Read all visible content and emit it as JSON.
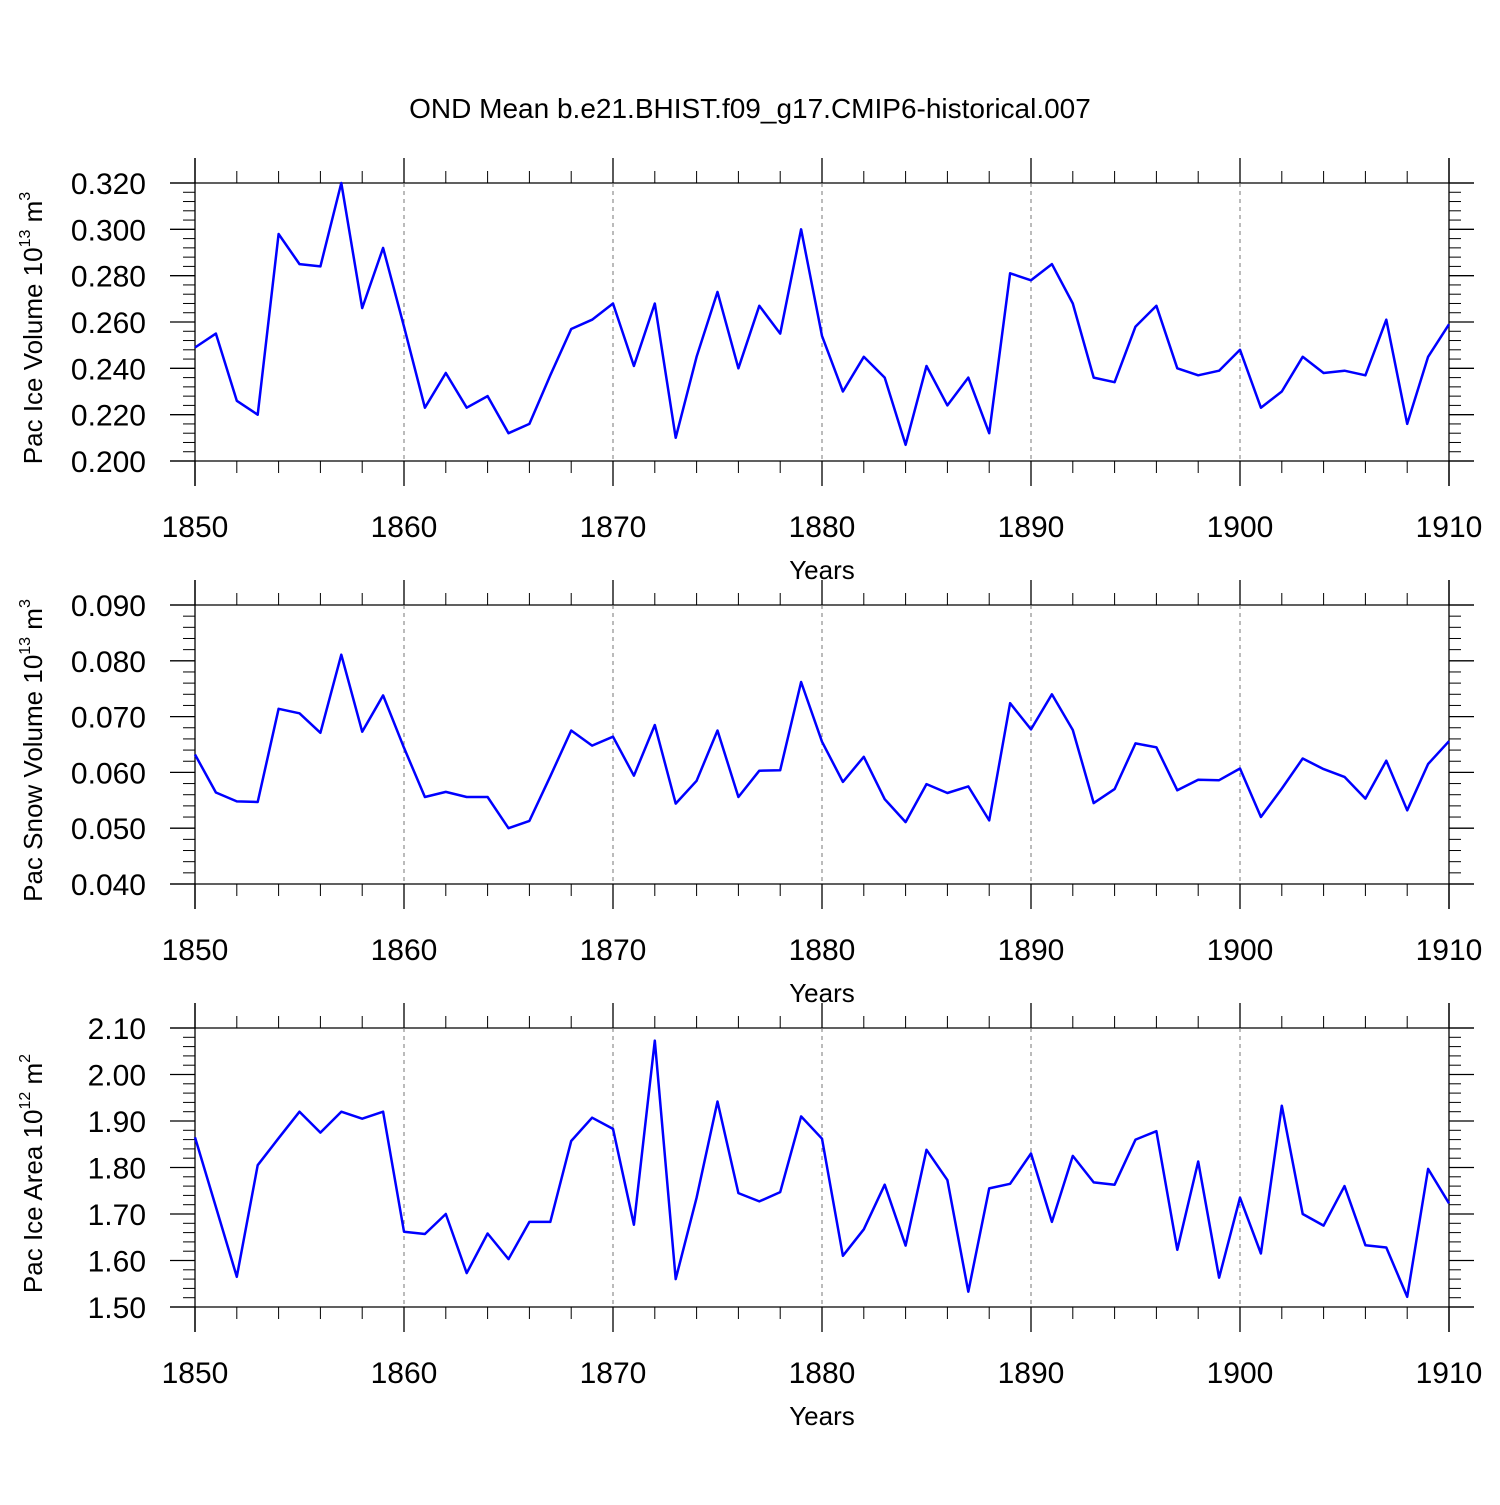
{
  "title": "OND Mean b.e21.BHIST.f09_g17.CMIP6-historical.007",
  "line_color": "#0000ff",
  "chart_data": [
    {
      "type": "line",
      "title": "OND Mean b.e21.BHIST.f09_g17.CMIP6-historical.007",
      "ylabel": "Pac Ice Volume 10^13 m^3",
      "ylabel_parts": {
        "text": "Pac Ice Volume 10",
        "sup1": "13",
        "unit": " m",
        "sup2": "3"
      },
      "xlabel": "Years",
      "xlim": [
        1850,
        1910
      ],
      "ylim": [
        0.2,
        0.32
      ],
      "x_ticks": [
        "1850",
        "1860",
        "1870",
        "1880",
        "1890",
        "1900",
        "1910"
      ],
      "y_ticks": [
        "0.200",
        "0.220",
        "0.240",
        "0.260",
        "0.280",
        "0.300",
        "0.320"
      ],
      "grid": "vertical dashed at major x ticks",
      "series": [
        {
          "name": "Pac Ice Volume",
          "x_start": 1850,
          "values": [
            0.249,
            0.255,
            0.226,
            0.22,
            0.298,
            0.285,
            0.284,
            0.32,
            0.266,
            0.292,
            0.258,
            0.223,
            0.238,
            0.223,
            0.228,
            0.212,
            0.216,
            0.237,
            0.257,
            0.261,
            0.268,
            0.241,
            0.268,
            0.21,
            0.245,
            0.273,
            0.24,
            0.267,
            0.255,
            0.3,
            0.254,
            0.23,
            0.245,
            0.236,
            0.207,
            0.241,
            0.224,
            0.236,
            0.212,
            0.281,
            0.278,
            0.285,
            0.268,
            0.236,
            0.234,
            0.258,
            0.267,
            0.24,
            0.237,
            0.239,
            0.248,
            0.223,
            0.23,
            0.245,
            0.238,
            0.239,
            0.237,
            0.261,
            0.216,
            0.245,
            0.259
          ]
        }
      ]
    },
    {
      "type": "line",
      "ylabel": "Pac Snow Volume 10^13 m^3",
      "ylabel_parts": {
        "text": "Pac Snow Volume 10",
        "sup1": "13",
        "unit": " m",
        "sup2": "3"
      },
      "xlabel": "Years",
      "xlim": [
        1850,
        1910
      ],
      "ylim": [
        0.04,
        0.09
      ],
      "x_ticks": [
        "1850",
        "1860",
        "1870",
        "1880",
        "1890",
        "1900",
        "1910"
      ],
      "y_ticks": [
        "0.040",
        "0.050",
        "0.060",
        "0.070",
        "0.080",
        "0.090"
      ],
      "grid": "vertical dashed at major x ticks",
      "series": [
        {
          "name": "Pac Snow Volume",
          "x_start": 1850,
          "values": [
            0.0632,
            0.0564,
            0.0548,
            0.0547,
            0.0714,
            0.0706,
            0.0671,
            0.0811,
            0.0673,
            0.0738,
            0.0644,
            0.0556,
            0.0565,
            0.0556,
            0.0556,
            0.05,
            0.0513,
            0.0593,
            0.0675,
            0.0648,
            0.0664,
            0.0594,
            0.0685,
            0.0544,
            0.0585,
            0.0675,
            0.0556,
            0.0603,
            0.0604,
            0.0762,
            0.0655,
            0.0583,
            0.0628,
            0.0552,
            0.0511,
            0.0579,
            0.0563,
            0.0575,
            0.0514,
            0.0724,
            0.0677,
            0.074,
            0.0676,
            0.0545,
            0.057,
            0.0652,
            0.0645,
            0.0568,
            0.0587,
            0.0586,
            0.0607,
            0.052,
            0.0571,
            0.0625,
            0.0606,
            0.0592,
            0.0553,
            0.0621,
            0.0532,
            0.0615,
            0.0656
          ]
        }
      ]
    },
    {
      "type": "line",
      "ylabel": "Pac Ice Area 10^12 m^2",
      "ylabel_parts": {
        "text": "Pac Ice Area 10",
        "sup1": "12",
        "unit": " m",
        "sup2": "2"
      },
      "xlabel": "Years",
      "xlim": [
        1850,
        1910
      ],
      "ylim": [
        1.5,
        2.1
      ],
      "x_ticks": [
        "1850",
        "1860",
        "1870",
        "1880",
        "1890",
        "1900",
        "1910"
      ],
      "y_ticks": [
        "1.50",
        "1.60",
        "1.70",
        "1.80",
        "1.90",
        "2.00",
        "2.10"
      ],
      "grid": "vertical dashed at major x ticks",
      "series": [
        {
          "name": "Pac Ice Area",
          "x_start": 1850,
          "values": [
            1.865,
            1.715,
            1.565,
            1.805,
            1.863,
            1.92,
            1.875,
            1.92,
            1.905,
            1.92,
            1.662,
            1.657,
            1.7,
            1.573,
            1.658,
            1.603,
            1.683,
            1.683,
            1.857,
            1.907,
            1.883,
            1.677,
            2.073,
            1.56,
            1.735,
            1.942,
            1.745,
            1.727,
            1.747,
            1.91,
            1.862,
            1.61,
            1.667,
            1.763,
            1.632,
            1.838,
            1.773,
            1.533,
            1.755,
            1.765,
            1.83,
            1.683,
            1.825,
            1.768,
            1.763,
            1.86,
            1.878,
            1.623,
            1.813,
            1.563,
            1.735,
            1.615,
            1.933,
            1.7,
            1.675,
            1.76,
            1.633,
            1.628,
            1.522,
            1.797,
            1.723
          ]
        }
      ]
    }
  ]
}
